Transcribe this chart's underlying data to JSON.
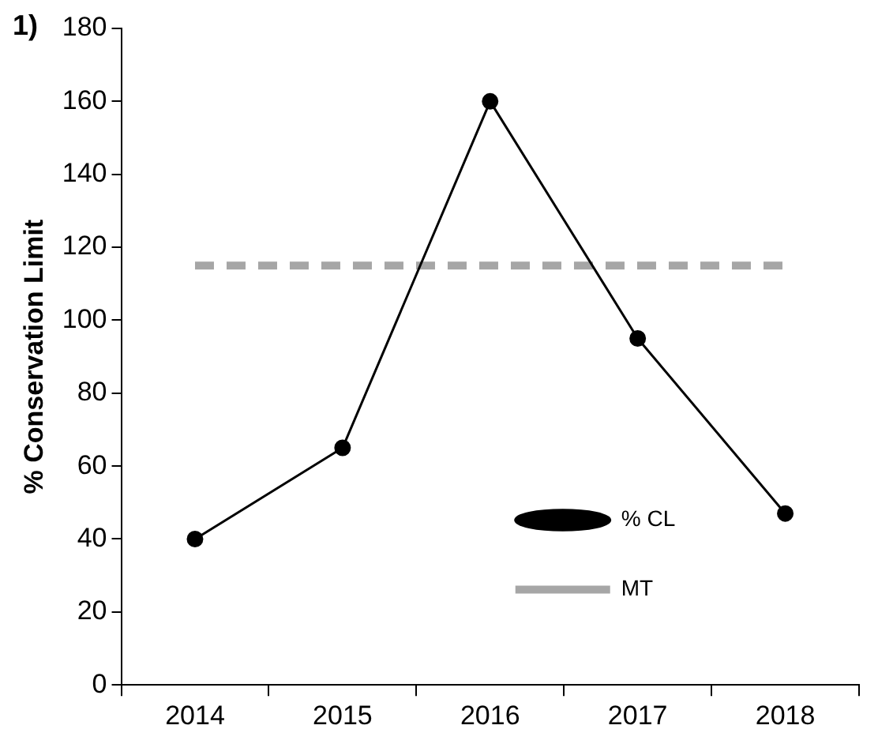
{
  "chart_data": {
    "type": "line",
    "title": "1)",
    "ylabel": "% Conservation Limit",
    "categories": [
      "2014",
      "2015",
      "2016",
      "2017",
      "2018"
    ],
    "series": [
      {
        "name": "% CL",
        "color": "#000000",
        "values": [
          40,
          65,
          160,
          95,
          47
        ],
        "marker": "circle",
        "line_style": "solid"
      },
      {
        "name": "MT",
        "color": "#a6a6a6",
        "values": [
          115,
          115,
          115,
          115,
          115
        ],
        "marker": "none",
        "line_style": "dashed"
      }
    ],
    "ylim": [
      0,
      180
    ],
    "yticks": [
      0,
      20,
      40,
      60,
      80,
      100,
      120,
      140,
      160,
      180
    ],
    "grid": false,
    "legend": "bottom right"
  }
}
